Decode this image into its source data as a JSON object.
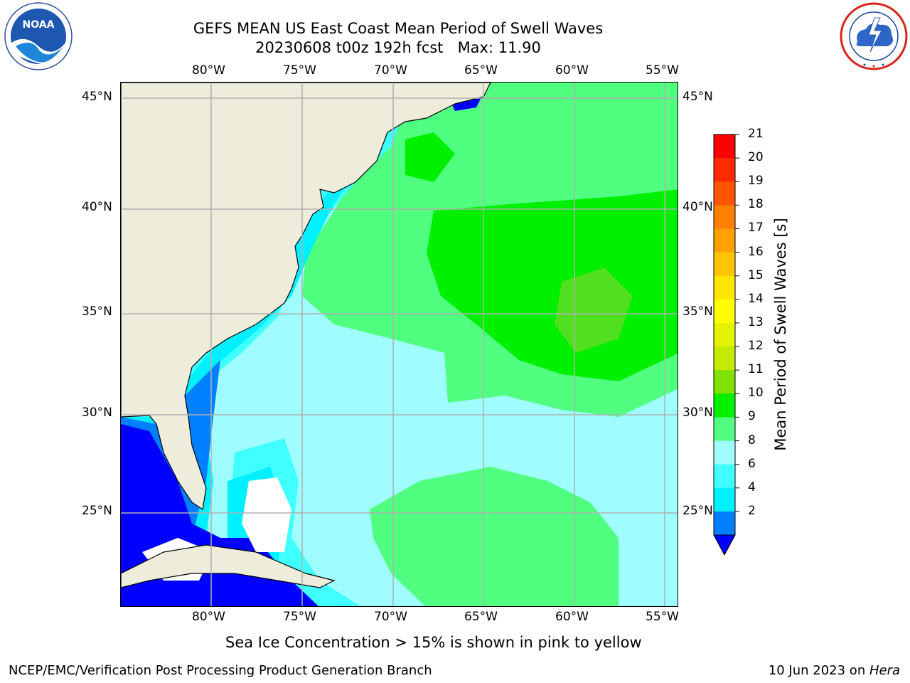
{
  "header": {
    "title_line1": "GEFS MEAN US East Coast Mean Period of Swell Waves",
    "title_line2": "20230608 t00z 192h fcst   Max: 11.90"
  },
  "logos": {
    "left_icon": "noaa-logo-icon",
    "right_icon": "nws-logo-icon",
    "left_text": "NOAA"
  },
  "map": {
    "lon_ticks": [
      "80°W",
      "75°W",
      "70°W",
      "65°W",
      "60°W",
      "55°W"
    ],
    "lat_ticks": [
      "45°N",
      "40°N",
      "35°N",
      "30°N",
      "25°N"
    ],
    "colors": {
      "land": "#eeeddc",
      "gridline": "#b0b0b0",
      "band_2_4": "#0000ff",
      "band_4_6": "#0080ff",
      "band_6_8": "#00f0ff",
      "band_8_9": "#40ffff",
      "band_9_10": "#9ffcff",
      "band_10_11": "#50ff80",
      "band_11_12": "#00f000",
      "band_12_13": "#50e020"
    }
  },
  "colorbar": {
    "label": "Mean Period of Swell Waves [s]",
    "ticks": [
      "21",
      "20",
      "19",
      "18",
      "17",
      "16",
      "15",
      "14",
      "13",
      "12",
      "11",
      "10",
      "9",
      "8",
      "6",
      "4",
      "2"
    ],
    "colors": [
      "#ff0000",
      "#ff2a00",
      "#ff5500",
      "#ff7f00",
      "#ffa000",
      "#ffc400",
      "#ffe600",
      "#ffff00",
      "#e4f400",
      "#c4ea00",
      "#80e000",
      "#00f000",
      "#50ff80",
      "#9ffcff",
      "#40ffff",
      "#00f0ff",
      "#0080ff"
    ],
    "extend_color": "#0000ff"
  },
  "footer": {
    "note": "Sea Ice Concentration > 15% is shown in pink to yellow",
    "credit": "NCEP/EMC/Verification Post Processing Product Generation Branch",
    "date": "10 Jun 2023 on ",
    "machine": "Hera"
  }
}
